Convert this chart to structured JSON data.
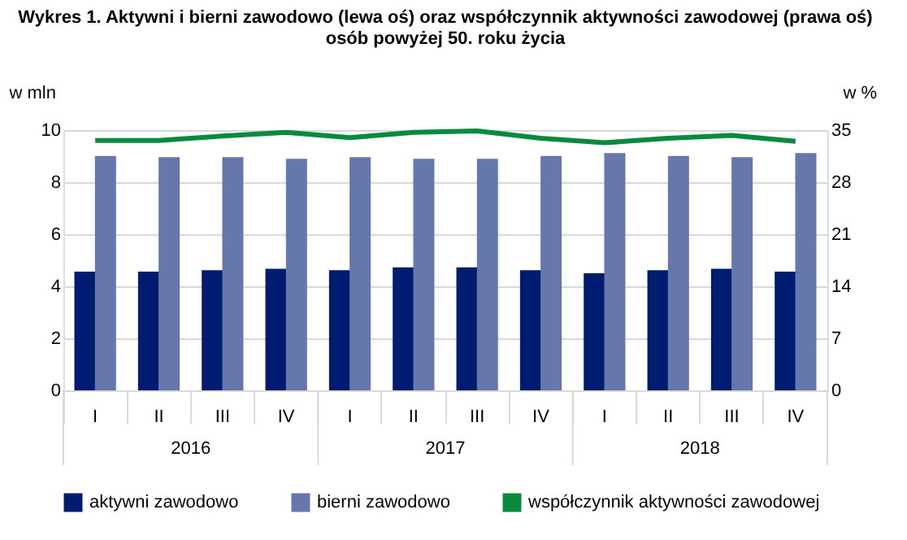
{
  "chart_data": {
    "type": "bar",
    "title": "Wykres 1. Aktywni i bierni zawodowo (lewa oś) oraz współczynnik aktywności zawodowej (prawa oś) osób powyżej 50. roku życia",
    "ylabel": "w mln",
    "y2label": "w %",
    "categories": [
      "I",
      "II",
      "III",
      "IV",
      "I",
      "II",
      "III",
      "IV",
      "I",
      "II",
      "III",
      "IV"
    ],
    "annotations": [
      "2016",
      "2017",
      "2018"
    ],
    "series": [
      {
        "name": "aktywni zawodowo",
        "color": "#001c71",
        "values": [
          4.56,
          4.56,
          4.62,
          4.67,
          4.62,
          4.73,
          4.73,
          4.62,
          4.5,
          4.62,
          4.67,
          4.56
        ]
      },
      {
        "name": "bierni zawodowo",
        "color": "#6577ab",
        "values": [
          9.01,
          8.96,
          8.96,
          8.9,
          8.96,
          8.9,
          8.9,
          9.01,
          9.12,
          9.01,
          8.96,
          9.12
        ]
      },
      {
        "name": "współczynnik aktywności zawodowej",
        "type": "line",
        "axis": "y2",
        "color": "#0a8a3e",
        "values": [
          33.6,
          33.6,
          34.2,
          34.7,
          34.0,
          34.7,
          34.9,
          33.9,
          33.3,
          33.9,
          34.3,
          33.5
        ]
      }
    ],
    "ylim": [
      0,
      10
    ],
    "yticks": [
      0,
      2,
      4,
      6,
      8,
      10
    ],
    "y2lim": [
      0,
      35
    ],
    "y2ticks": [
      0,
      7,
      14,
      21,
      28,
      35
    ],
    "grid": "y",
    "legend": "bottom",
    "marker": "none",
    "line_style": "solid"
  }
}
